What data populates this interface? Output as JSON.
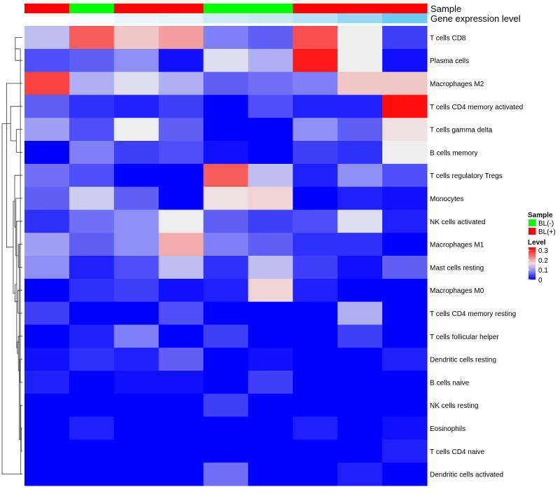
{
  "chart_data": {
    "type": "heatmap",
    "annotations": {
      "sample_label": "Sample",
      "expression_label": "Gene expression level",
      "sample_groups": [
        "BL(+)",
        "BL(-)",
        "BL(+)",
        "BL(+)",
        "BL(-)",
        "BL(-)",
        "BL(+)",
        "BL(+)",
        "BL(+)"
      ],
      "expression_values": [
        0.02,
        0.03,
        0.1,
        0.13,
        0.15,
        0.18,
        0.32,
        0.45,
        0.62
      ],
      "expression_colors": [
        "#ffffff",
        "#f9fdff",
        "#ebf6fb",
        "#e6f4fa",
        "#cdebf7",
        "#c7e9f6",
        "#b6e3f6",
        "#98d8f4",
        "#6ccaf3"
      ]
    },
    "rows": [
      "T cells CD8",
      "Plasma cells",
      "Macrophages M2",
      "T cells CD4 memory activated",
      "T cells gamma delta",
      "B cells memory",
      "T cells regulatory  Tregs",
      "Monocytes",
      "NK cells activated",
      "Macrophages M1",
      "Mast cells resting",
      "Macrophages M0",
      "T cells CD4 memory resting",
      "T cells follicular helper",
      "Dendritic cells resting",
      "B cells naive",
      "NK cells resting",
      "Eosinophils",
      "T cells CD4 naive",
      "Dendritic cells activated"
    ],
    "values": [
      [
        0.12,
        0.26,
        0.18,
        0.21,
        0.08,
        0.06,
        0.27,
        0.15,
        0.04
      ],
      [
        0.05,
        0.06,
        0.09,
        0.01,
        0.14,
        0.11,
        0.31,
        0.15,
        0.01
      ],
      [
        0.28,
        0.11,
        0.14,
        0.11,
        0.06,
        0.07,
        0.08,
        0.18,
        0.18
      ],
      [
        0.06,
        0.03,
        0.02,
        0.04,
        0.0,
        0.05,
        0.02,
        0.02,
        0.32
      ],
      [
        0.1,
        0.05,
        0.15,
        0.06,
        0.0,
        0.0,
        0.09,
        0.06,
        0.16
      ],
      [
        0.0,
        0.08,
        0.04,
        0.05,
        0.01,
        0.0,
        0.04,
        0.03,
        0.15
      ],
      [
        0.07,
        0.05,
        0.0,
        0.0,
        0.26,
        0.12,
        0.02,
        0.09,
        0.05
      ],
      [
        0.06,
        0.13,
        0.06,
        0.0,
        0.16,
        0.17,
        0.0,
        0.02,
        0.01
      ],
      [
        0.03,
        0.07,
        0.09,
        0.15,
        0.06,
        0.04,
        0.05,
        0.14,
        0.02
      ],
      [
        0.1,
        0.06,
        0.09,
        0.2,
        0.08,
        0.06,
        0.03,
        0.03,
        0.0
      ],
      [
        0.09,
        0.02,
        0.05,
        0.12,
        0.03,
        0.12,
        0.04,
        0.01,
        0.06
      ],
      [
        0.0,
        0.03,
        0.04,
        0.01,
        0.02,
        0.17,
        0.02,
        0.0,
        0.0
      ],
      [
        0.04,
        0.0,
        0.0,
        0.05,
        0.0,
        0.0,
        0.0,
        0.11,
        0.0
      ],
      [
        0.0,
        0.02,
        0.08,
        0.0,
        0.04,
        0.0,
        0.0,
        0.04,
        0.0
      ],
      [
        0.01,
        0.03,
        0.02,
        0.06,
        0.0,
        0.01,
        0.0,
        0.0,
        0.02
      ],
      [
        0.02,
        0.0,
        0.01,
        0.01,
        0.0,
        0.04,
        0.0,
        0.0,
        0.0
      ],
      [
        0.0,
        0.0,
        0.0,
        0.0,
        0.04,
        0.0,
        0.0,
        0.0,
        0.0
      ],
      [
        0.0,
        0.02,
        0.0,
        0.0,
        0.0,
        0.0,
        0.02,
        0.0,
        0.01
      ],
      [
        0.0,
        0.0,
        0.0,
        0.0,
        0.0,
        0.0,
        0.0,
        0.0,
        0.02
      ],
      [
        0.0,
        0.0,
        0.0,
        0.0,
        0.07,
        0.0,
        0.0,
        0.02,
        0.0
      ]
    ],
    "color_scale": {
      "low": "#0000ff",
      "mid": "#eeeeee",
      "high": "#ff0000",
      "domain": [
        0,
        0.15,
        0.33
      ]
    },
    "legend": {
      "sample_title": "Sample",
      "sample_entries": [
        {
          "label": "BL(-)",
          "color": "#00ff00"
        },
        {
          "label": "BL(+)",
          "color": "#ff0000"
        }
      ],
      "level_title": "Level",
      "level_ticks": [
        {
          "label": "0.3",
          "value": 0.3
        },
        {
          "label": "0.2",
          "value": 0.2
        },
        {
          "label": "0.1",
          "value": 0.1
        },
        {
          "label": "0",
          "value": 0
        }
      ]
    },
    "dendrogram": {
      "merges": [
        [
          0,
          1,
          0.35
        ],
        [
          17,
          18,
          0.06
        ],
        [
          16,
          19,
          0.08
        ],
        [
          20,
          21,
          0.1
        ],
        [
          14,
          15,
          0.12
        ],
        [
          22,
          23,
          0.15
        ],
        [
          13,
          24,
          0.2
        ],
        [
          11,
          12,
          0.22
        ],
        [
          25,
          26,
          0.25
        ],
        [
          9,
          10,
          0.2
        ],
        [
          8,
          28,
          0.28
        ],
        [
          7,
          29,
          0.32
        ],
        [
          27,
          30,
          0.36
        ],
        [
          6,
          31,
          0.38
        ],
        [
          4,
          5,
          0.3
        ],
        [
          33,
          32,
          0.45
        ],
        [
          3,
          34,
          0.58
        ],
        [
          2,
          35,
          0.78
        ],
        [
          19,
          36,
          1.0
        ]
      ]
    }
  }
}
